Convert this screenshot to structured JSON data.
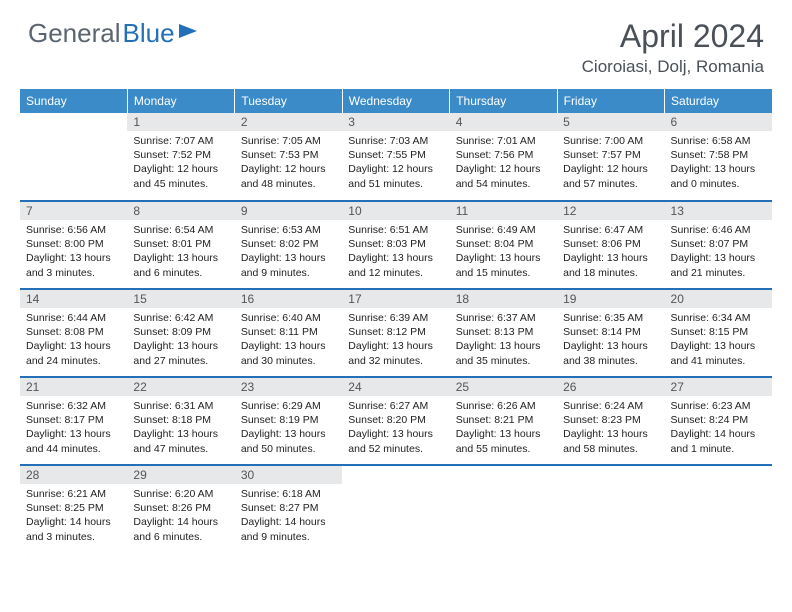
{
  "logo": {
    "text1": "General",
    "text2": "Blue"
  },
  "title": "April 2024",
  "location": "Cioroiasi, Dolj, Romania",
  "colors": {
    "header_bg": "#3b8bc9",
    "accent": "#2370b8",
    "daynum_bg": "#e6e8ea"
  },
  "weekdays": [
    "Sunday",
    "Monday",
    "Tuesday",
    "Wednesday",
    "Thursday",
    "Friday",
    "Saturday"
  ],
  "weeks": [
    [
      {
        "empty": true
      },
      {
        "n": "1",
        "sr": "7:07 AM",
        "ss": "7:52 PM",
        "dl": "12 hours and 45 minutes."
      },
      {
        "n": "2",
        "sr": "7:05 AM",
        "ss": "7:53 PM",
        "dl": "12 hours and 48 minutes."
      },
      {
        "n": "3",
        "sr": "7:03 AM",
        "ss": "7:55 PM",
        "dl": "12 hours and 51 minutes."
      },
      {
        "n": "4",
        "sr": "7:01 AM",
        "ss": "7:56 PM",
        "dl": "12 hours and 54 minutes."
      },
      {
        "n": "5",
        "sr": "7:00 AM",
        "ss": "7:57 PM",
        "dl": "12 hours and 57 minutes."
      },
      {
        "n": "6",
        "sr": "6:58 AM",
        "ss": "7:58 PM",
        "dl": "13 hours and 0 minutes."
      }
    ],
    [
      {
        "n": "7",
        "sr": "6:56 AM",
        "ss": "8:00 PM",
        "dl": "13 hours and 3 minutes."
      },
      {
        "n": "8",
        "sr": "6:54 AM",
        "ss": "8:01 PM",
        "dl": "13 hours and 6 minutes."
      },
      {
        "n": "9",
        "sr": "6:53 AM",
        "ss": "8:02 PM",
        "dl": "13 hours and 9 minutes."
      },
      {
        "n": "10",
        "sr": "6:51 AM",
        "ss": "8:03 PM",
        "dl": "13 hours and 12 minutes."
      },
      {
        "n": "11",
        "sr": "6:49 AM",
        "ss": "8:04 PM",
        "dl": "13 hours and 15 minutes."
      },
      {
        "n": "12",
        "sr": "6:47 AM",
        "ss": "8:06 PM",
        "dl": "13 hours and 18 minutes."
      },
      {
        "n": "13",
        "sr": "6:46 AM",
        "ss": "8:07 PM",
        "dl": "13 hours and 21 minutes."
      }
    ],
    [
      {
        "n": "14",
        "sr": "6:44 AM",
        "ss": "8:08 PM",
        "dl": "13 hours and 24 minutes."
      },
      {
        "n": "15",
        "sr": "6:42 AM",
        "ss": "8:09 PM",
        "dl": "13 hours and 27 minutes."
      },
      {
        "n": "16",
        "sr": "6:40 AM",
        "ss": "8:11 PM",
        "dl": "13 hours and 30 minutes."
      },
      {
        "n": "17",
        "sr": "6:39 AM",
        "ss": "8:12 PM",
        "dl": "13 hours and 32 minutes."
      },
      {
        "n": "18",
        "sr": "6:37 AM",
        "ss": "8:13 PM",
        "dl": "13 hours and 35 minutes."
      },
      {
        "n": "19",
        "sr": "6:35 AM",
        "ss": "8:14 PM",
        "dl": "13 hours and 38 minutes."
      },
      {
        "n": "20",
        "sr": "6:34 AM",
        "ss": "8:15 PM",
        "dl": "13 hours and 41 minutes."
      }
    ],
    [
      {
        "n": "21",
        "sr": "6:32 AM",
        "ss": "8:17 PM",
        "dl": "13 hours and 44 minutes."
      },
      {
        "n": "22",
        "sr": "6:31 AM",
        "ss": "8:18 PM",
        "dl": "13 hours and 47 minutes."
      },
      {
        "n": "23",
        "sr": "6:29 AM",
        "ss": "8:19 PM",
        "dl": "13 hours and 50 minutes."
      },
      {
        "n": "24",
        "sr": "6:27 AM",
        "ss": "8:20 PM",
        "dl": "13 hours and 52 minutes."
      },
      {
        "n": "25",
        "sr": "6:26 AM",
        "ss": "8:21 PM",
        "dl": "13 hours and 55 minutes."
      },
      {
        "n": "26",
        "sr": "6:24 AM",
        "ss": "8:23 PM",
        "dl": "13 hours and 58 minutes."
      },
      {
        "n": "27",
        "sr": "6:23 AM",
        "ss": "8:24 PM",
        "dl": "14 hours and 1 minute."
      }
    ],
    [
      {
        "n": "28",
        "sr": "6:21 AM",
        "ss": "8:25 PM",
        "dl": "14 hours and 3 minutes."
      },
      {
        "n": "29",
        "sr": "6:20 AM",
        "ss": "8:26 PM",
        "dl": "14 hours and 6 minutes."
      },
      {
        "n": "30",
        "sr": "6:18 AM",
        "ss": "8:27 PM",
        "dl": "14 hours and 9 minutes."
      },
      {
        "empty": true
      },
      {
        "empty": true
      },
      {
        "empty": true
      },
      {
        "empty": true
      }
    ]
  ],
  "labels": {
    "sunrise": "Sunrise: ",
    "sunset": "Sunset: ",
    "daylight": "Daylight: "
  }
}
